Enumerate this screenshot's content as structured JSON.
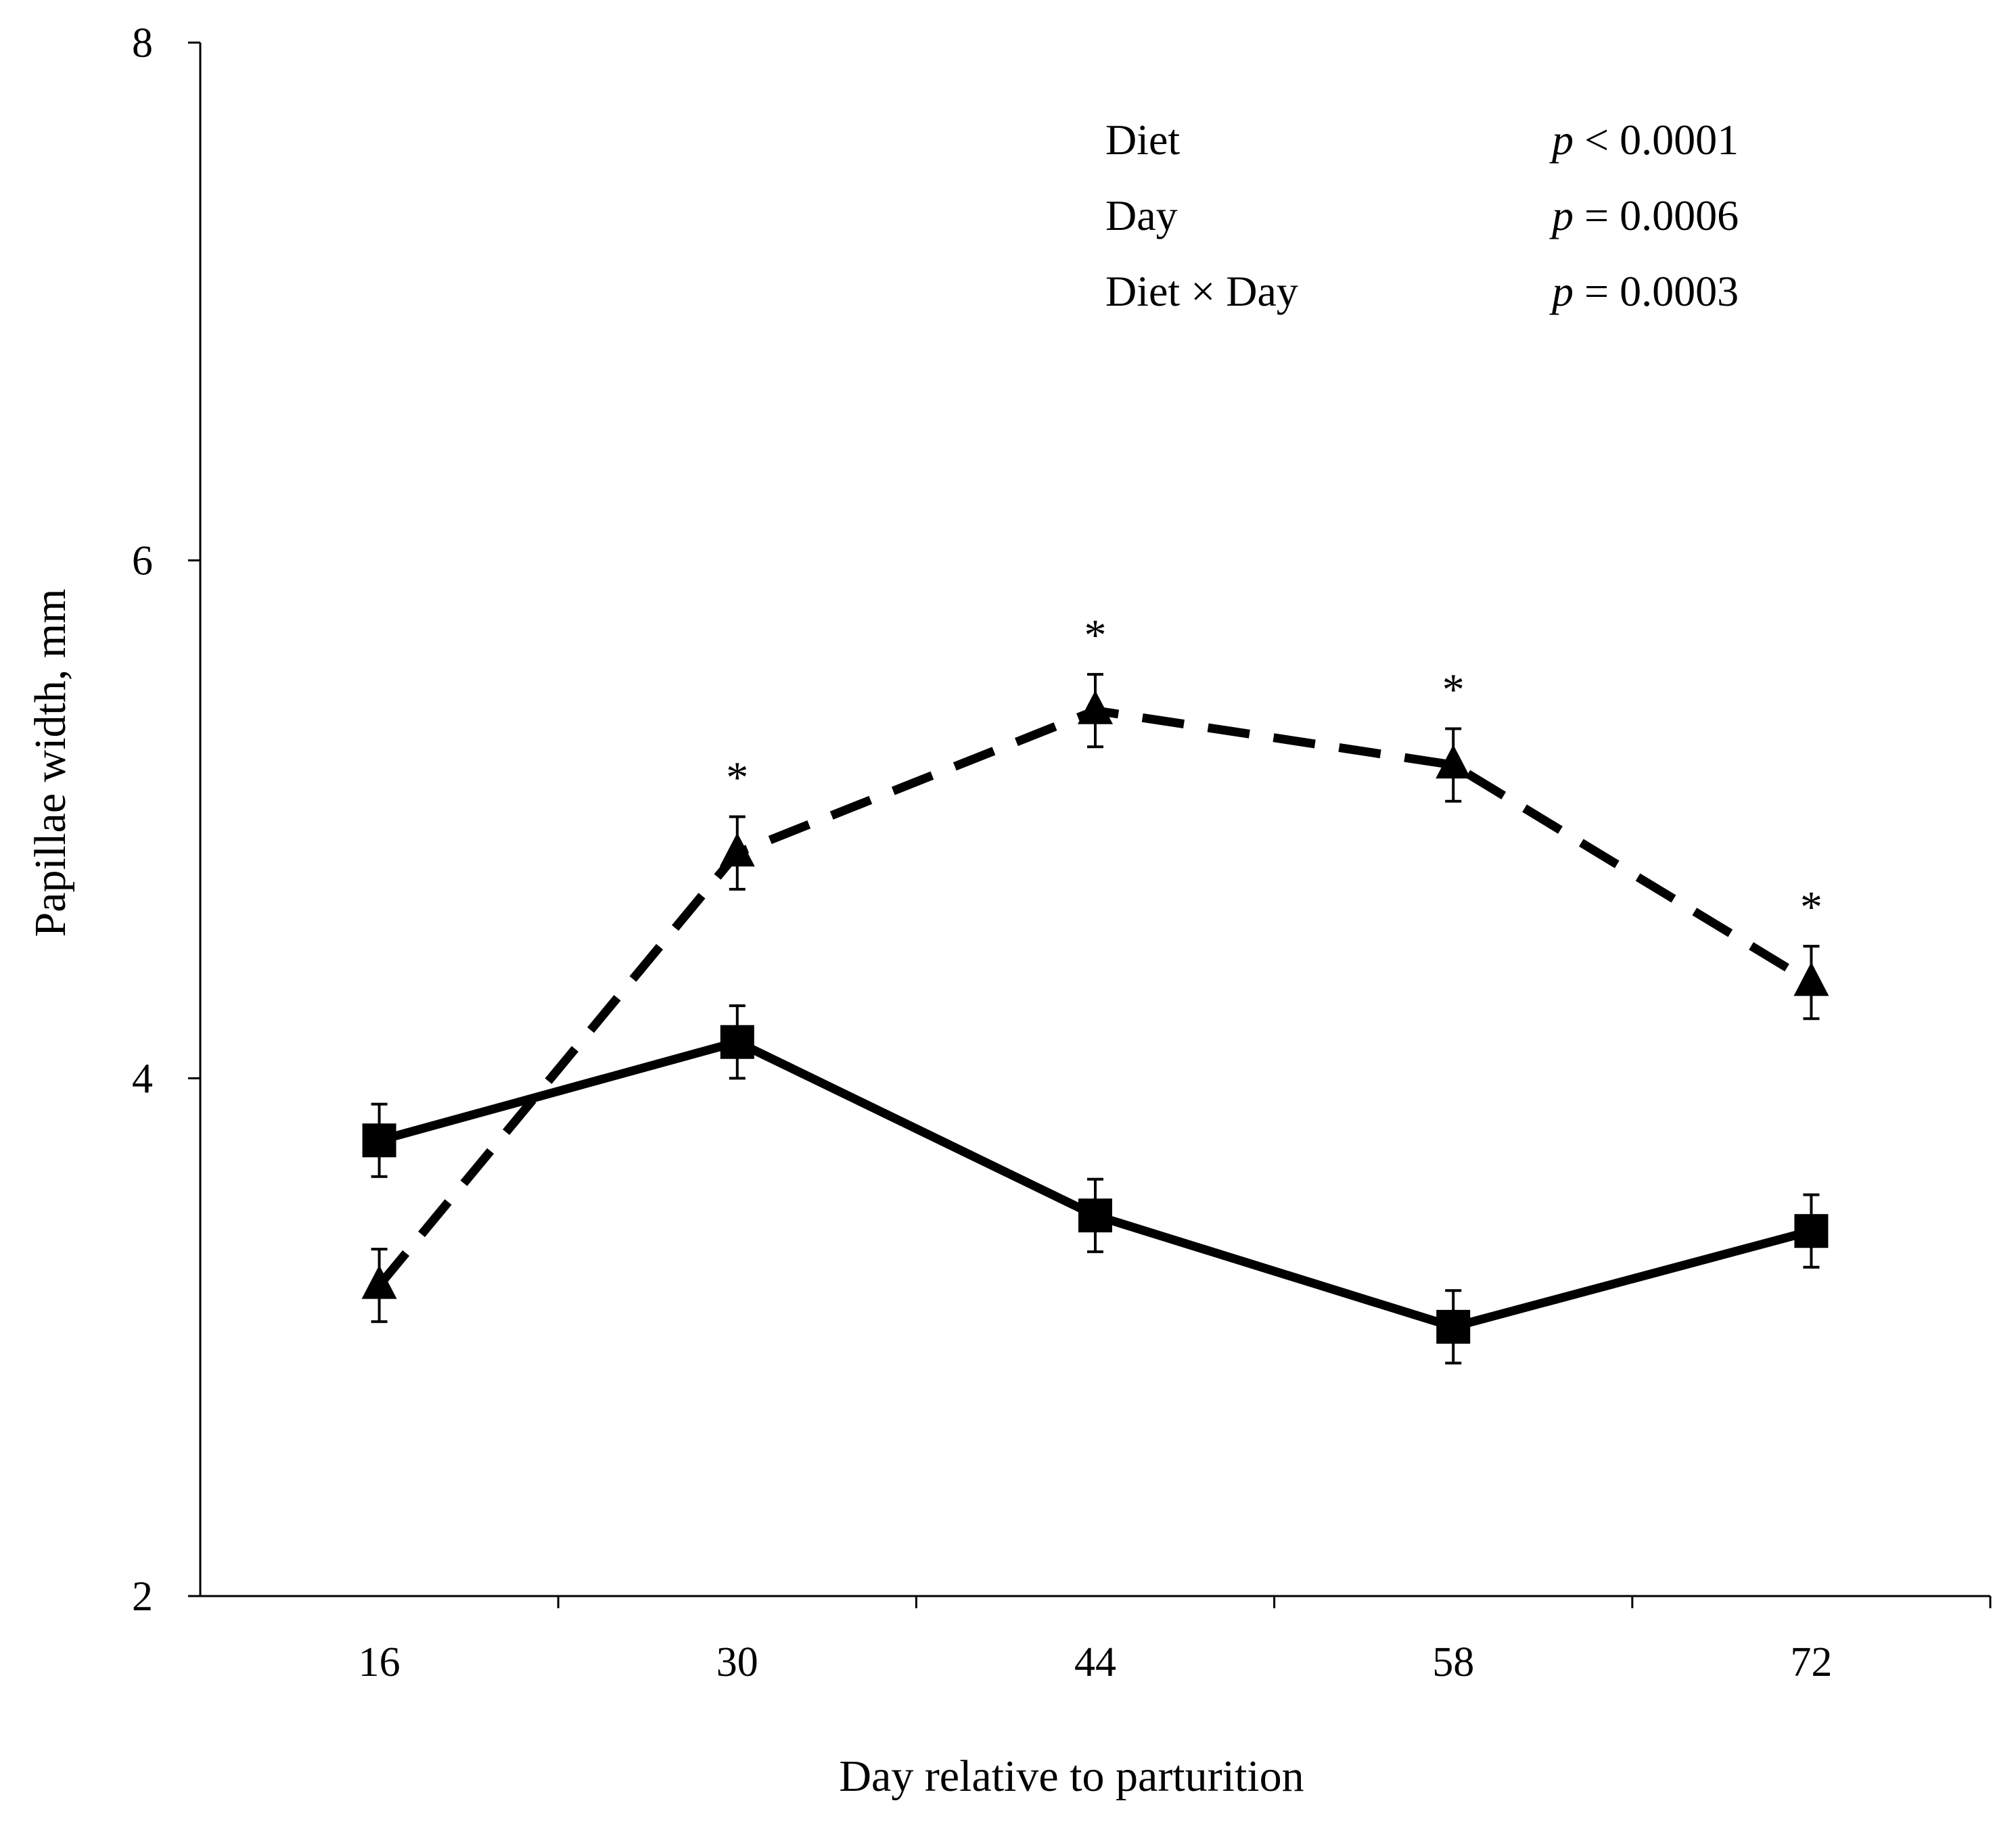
{
  "chart_data": {
    "type": "line",
    "title": "",
    "xlabel": "Day relative to parturition",
    "ylabel": "Papillae width, mm",
    "categories": [
      "16",
      "30",
      "44",
      "58",
      "72"
    ],
    "ylim": [
      2,
      8
    ],
    "yticks": [
      2,
      4,
      6,
      8
    ],
    "ytick_labels": [
      "2",
      "4",
      "6",
      "8"
    ],
    "series": [
      {
        "name": "Square (solid line)",
        "marker": "square",
        "line": "solid",
        "values": [
          3.76,
          4.14,
          3.47,
          3.04,
          3.41
        ],
        "errors": [
          0.14,
          0.14,
          0.14,
          0.14,
          0.14
        ]
      },
      {
        "name": "Triangle (dashed line)",
        "marker": "triangle",
        "line": "dashed",
        "values": [
          3.2,
          4.87,
          5.42,
          5.21,
          4.37
        ],
        "errors": [
          0.14,
          0.14,
          0.14,
          0.14,
          0.14
        ]
      }
    ],
    "significance": {
      "symbol": "*",
      "categories": [
        "30",
        "44",
        "58",
        "72"
      ]
    },
    "annotations": [
      {
        "label": "Diet",
        "p": "p",
        "value": " < 0.0001"
      },
      {
        "label": "Day",
        "p": "p",
        "value": " = 0.0006"
      },
      {
        "label": "Diet × Day",
        "p": "p",
        "value": " = 0.0003"
      }
    ]
  }
}
